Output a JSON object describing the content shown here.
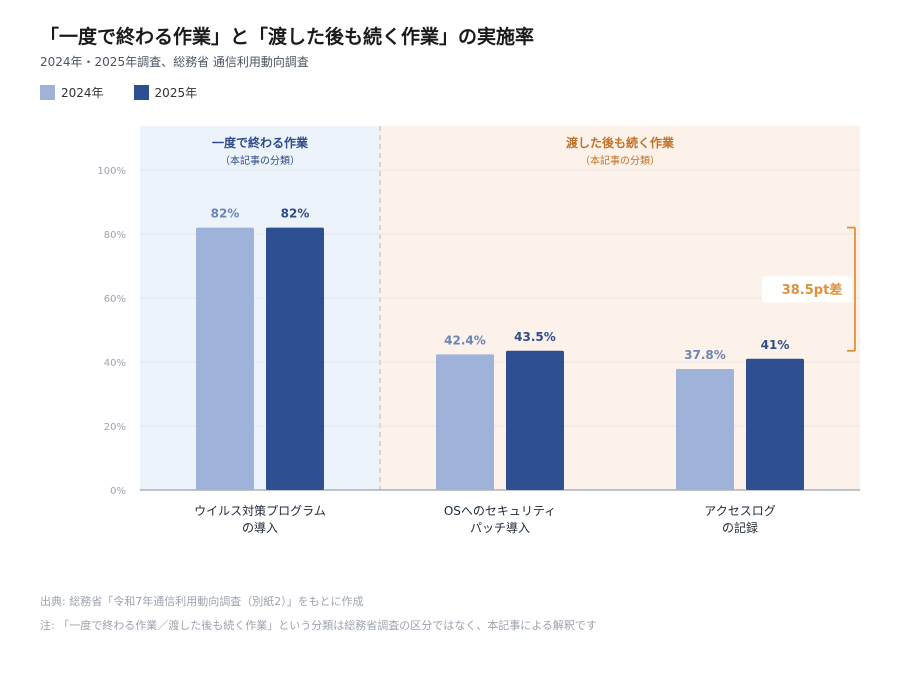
{
  "title": "「一度で終わる作業」と「渡した後も続く作業」の実施率",
  "subtitle": "2024年・2025年調査、総務省 通信利用動向調査",
  "legend": [
    {
      "name": "2024年",
      "color": "#9fb3da"
    },
    {
      "name": "2025年",
      "color": "#2e5090"
    }
  ],
  "groups": [
    {
      "title": "一度で終わる作業",
      "subtitle": "（本記事の分類）",
      "bg": "#edf3fb",
      "title_color": "#2e4d8a",
      "category_count": 1
    },
    {
      "title": "渡した後も続く作業",
      "subtitle": "（本記事の分類）",
      "bg": "#fdf2ea",
      "title_color": "#c0722a",
      "category_count": 2
    }
  ],
  "chart_data": {
    "type": "bar",
    "categories": [
      [
        "ウイルス対策プログラム",
        "の導入"
      ],
      [
        "OSへのセキュリティ",
        "パッチ導入"
      ],
      [
        "アクセスログ",
        "の記録"
      ]
    ],
    "series": [
      {
        "name": "2024年",
        "values": [
          82,
          42.4,
          37.8
        ],
        "labels": [
          "82%",
          "42.4%",
          "37.8%"
        ]
      },
      {
        "name": "2025年",
        "values": [
          82,
          43.5,
          41
        ],
        "labels": [
          "82%",
          "43.5%",
          "41%"
        ]
      }
    ],
    "ylim": [
      0,
      100
    ],
    "yticks": [
      "0%",
      "20%",
      "40%",
      "60%",
      "80%",
      "100%"
    ],
    "annotation": {
      "label": "38.5pt差",
      "from_value": 43.5,
      "to_value": 82,
      "color": "#e0913a"
    }
  },
  "notes": {
    "source": "出典: 総務省「令和7年通信利用動向調査（別紙2）」をもとに作成",
    "note": "注: 「一度で終わる作業／渡した後も続く作業」という分類は総務省調査の区分ではなく、本記事による解釈です"
  }
}
